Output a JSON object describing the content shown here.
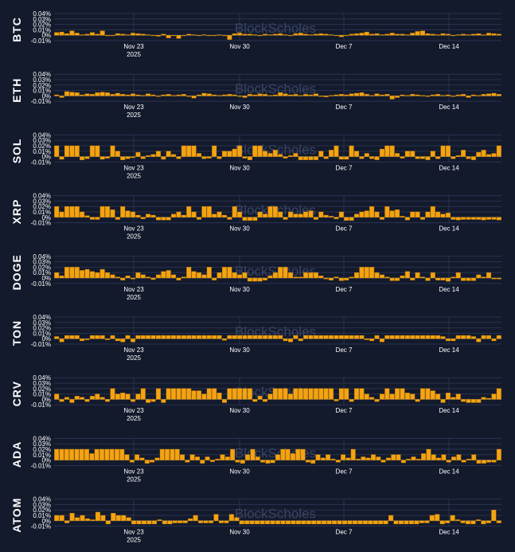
{
  "watermark": "BlockScholes",
  "chart_data": [
    {
      "type": "bar",
      "asset": "BTC",
      "y_ticks": [
        "0.04%",
        "0.03%",
        "0.02%",
        "0.01%",
        "0%",
        "-0.01%"
      ],
      "ylim": [
        -0.01,
        0.04
      ],
      "x_ticks": [
        {
          "label": "Nov 23",
          "sub": "2025"
        },
        {
          "label": "Nov 30"
        },
        {
          "label": "Dec 7"
        },
        {
          "label": "Dec 14"
        }
      ],
      "values": [
        0.005,
        0.006,
        0.003,
        0.008,
        0.004,
        0.001,
        0.002,
        0.005,
        0.002,
        0.008,
        0.0,
        0.0,
        0.003,
        0.002,
        0.001,
        0.004,
        0.003,
        0.002,
        0.001,
        0.0,
        -0.002,
        0.002,
        -0.005,
        -0.001,
        -0.006,
        0.0,
        0.002,
        0.001,
        0.0,
        0.001,
        0.0,
        -0.001,
        0.001,
        0.0,
        -0.008,
        0.003,
        0.004,
        0.002,
        0.002,
        0.001,
        0.0,
        0.002,
        0.001,
        0.002,
        0.003,
        0.001,
        0.0,
        0.003,
        0.004,
        0.002,
        0.001,
        0.002,
        0.003,
        0.002,
        0.001,
        -0.001,
        -0.003,
        0.0,
        0.002,
        0.003,
        0.004,
        0.006,
        0.002,
        0.003,
        0.001,
        0.002,
        0.004,
        0.002,
        0.002,
        0.001,
        0.004,
        0.007,
        0.008,
        0.003,
        0.002,
        0.001,
        0.003,
        0.002,
        0.0,
        0.001,
        0.002,
        0.001,
        0.002,
        0.003,
        0.001,
        0.004,
        0.003,
        0.002
      ]
    },
    {
      "type": "bar",
      "asset": "ETH",
      "y_ticks": [
        "0.04%",
        "0.03%",
        "0.02%",
        "0.01%",
        "0%",
        "-0.01%"
      ],
      "ylim": [
        -0.01,
        0.04
      ],
      "x_ticks": [
        {
          "label": "Nov 23",
          "sub": "2025"
        },
        {
          "label": "Nov 30"
        },
        {
          "label": "Dec 7"
        },
        {
          "label": "Dec 14"
        }
      ],
      "values": [
        0.002,
        -0.003,
        0.008,
        0.007,
        0.006,
        0.002,
        0.004,
        0.003,
        0.006,
        0.007,
        0.006,
        0.003,
        0.005,
        0.003,
        0.002,
        0.004,
        0.002,
        0.001,
        0.004,
        0.002,
        0.0,
        0.002,
        0.003,
        0.001,
        0.002,
        0.003,
        0.0,
        -0.004,
        0.002,
        0.005,
        0.004,
        0.002,
        0.001,
        0.002,
        0.003,
        0.002,
        0.0,
        -0.003,
        0.003,
        0.002,
        0.004,
        0.003,
        0.001,
        0.002,
        0.006,
        0.004,
        0.002,
        0.003,
        0.001,
        0.003,
        0.002,
        0.004,
        0.0,
        -0.002,
        0.001,
        0.002,
        0.003,
        0.002,
        0.004,
        0.005,
        0.006,
        0.003,
        0.001,
        0.004,
        0.002,
        0.003,
        -0.006,
        -0.003,
        0.002,
        0.001,
        0.003,
        0.002,
        0.001,
        0.0,
        0.002,
        0.003,
        0.001,
        0.002,
        0.0,
        0.002,
        0.003,
        -0.003,
        0.002,
        0.001,
        0.003,
        0.004,
        0.005,
        0.003
      ]
    },
    {
      "type": "bar",
      "asset": "SOL",
      "y_ticks": [
        "0.04%",
        "0.03%",
        "0.02%",
        "0.01%",
        "0%",
        "-0.01%"
      ],
      "ylim": [
        -0.01,
        0.04
      ],
      "x_ticks": [
        {
          "label": "Nov 23",
          "sub": "2025"
        },
        {
          "label": "Nov 30"
        },
        {
          "label": "Dec 7"
        },
        {
          "label": "Dec 14"
        }
      ],
      "values": [
        0.02,
        -0.005,
        0.02,
        0.02,
        0.02,
        -0.006,
        -0.004,
        0.02,
        0.02,
        -0.005,
        -0.003,
        0.02,
        0.01,
        -0.006,
        -0.004,
        -0.002,
        0.008,
        -0.004,
        0.002,
        0.004,
        0.01,
        -0.005,
        0.01,
        0.004,
        -0.004,
        0.02,
        0.02,
        0.02,
        0.006,
        -0.004,
        -0.003,
        0.02,
        -0.004,
        0.01,
        0.01,
        0.014,
        0.02,
        -0.003,
        -0.006,
        0.02,
        0.02,
        0.01,
        0.006,
        0.012,
        0.004,
        -0.003,
        0.002,
        0.006,
        -0.006,
        -0.006,
        -0.006,
        -0.006,
        0.01,
        -0.004,
        0.012,
        0.02,
        -0.005,
        -0.005,
        0.02,
        0.01,
        -0.004,
        0.006,
        -0.004,
        -0.006,
        0.014,
        0.02,
        0.02,
        0.006,
        -0.003,
        0.01,
        0.01,
        -0.004,
        -0.004,
        -0.006,
        0.01,
        -0.004,
        0.02,
        0.02,
        -0.004,
        0.002,
        0.012,
        -0.004,
        -0.006,
        0.008,
        0.012,
        0.004,
        0.006,
        0.02
      ]
    },
    {
      "type": "bar",
      "asset": "XRP",
      "y_ticks": [
        "0.04%",
        "0.03%",
        "0.02%",
        "0.01%",
        "0%",
        "-0.01%"
      ],
      "ylim": [
        -0.01,
        0.04
      ],
      "x_ticks": [
        {
          "label": "Nov 23",
          "sub": "2025"
        },
        {
          "label": "Nov 30"
        },
        {
          "label": "Dec 7"
        },
        {
          "label": "Dec 14"
        }
      ],
      "values": [
        0.02,
        0.01,
        0.02,
        0.02,
        0.02,
        0.01,
        0.003,
        -0.004,
        -0.004,
        0.02,
        0.02,
        0.014,
        -0.004,
        0.02,
        0.012,
        0.01,
        0.004,
        -0.003,
        0.006,
        0.004,
        -0.005,
        -0.005,
        -0.005,
        0.006,
        0.01,
        0.004,
        0.02,
        0.01,
        -0.004,
        0.02,
        0.02,
        0.006,
        0.01,
        0.004,
        -0.004,
        0.02,
        0.01,
        -0.006,
        -0.006,
        -0.006,
        0.01,
        0.006,
        0.02,
        0.02,
        0.01,
        -0.004,
        0.01,
        0.006,
        0.006,
        0.01,
        0.012,
        -0.004,
        0.01,
        0.004,
        0.002,
        -0.003,
        0.01,
        -0.006,
        -0.006,
        0.006,
        0.01,
        0.012,
        0.02,
        0.01,
        -0.004,
        0.02,
        0.012,
        0.014,
        0.002,
        -0.005,
        0.01,
        0.01,
        -0.004,
        0.01,
        0.02,
        0.01,
        0.006,
        0.008,
        -0.004,
        -0.005,
        -0.004,
        -0.004,
        -0.004,
        -0.004,
        -0.005,
        -0.004,
        -0.004,
        -0.005
      ]
    },
    {
      "type": "bar",
      "asset": "DOGE",
      "y_ticks": [
        "0.04%",
        "0.03%",
        "0.02%",
        "0.01%",
        "0%",
        "-0.01%"
      ],
      "ylim": [
        -0.01,
        0.04
      ],
      "x_ticks": [
        {
          "label": "Nov 23",
          "sub": "2025"
        },
        {
          "label": "Nov 30"
        },
        {
          "label": "Dec 7"
        },
        {
          "label": "Dec 14"
        }
      ],
      "values": [
        0.01,
        0.004,
        0.02,
        0.02,
        0.02,
        0.014,
        0.016,
        0.012,
        0.01,
        0.016,
        0.01,
        0.006,
        0.002,
        -0.004,
        0.004,
        -0.002,
        0.01,
        0.006,
        0.002,
        -0.003,
        0.006,
        0.012,
        0.014,
        0.006,
        -0.004,
        0.002,
        0.02,
        0.012,
        0.01,
        0.006,
        0.02,
        -0.004,
        0.01,
        0.02,
        0.02,
        0.01,
        0.006,
        0.01,
        -0.006,
        -0.006,
        -0.006,
        -0.004,
        0.004,
        0.01,
        0.02,
        0.02,
        0.01,
        0.002,
        0.002,
        0.01,
        0.01,
        0.01,
        0.004,
        -0.002,
        -0.004,
        0.002,
        -0.005,
        -0.004,
        0.002,
        0.01,
        0.02,
        0.02,
        0.02,
        0.01,
        0.006,
        0.002,
        -0.005,
        -0.005,
        0.004,
        0.012,
        -0.004,
        0.01,
        0.002,
        -0.005,
        0.01,
        -0.004,
        -0.004,
        -0.006,
        0.002,
        0.01,
        -0.005,
        -0.005,
        -0.005,
        0.006,
        0.002,
        0.01,
        -0.002,
        -0.002
      ]
    },
    {
      "type": "bar",
      "asset": "TON",
      "y_ticks": [
        "0.04%",
        "0.03%",
        "0.02%",
        "0.01%",
        "0%",
        "-0.01%"
      ],
      "ylim": [
        -0.01,
        0.04
      ],
      "x_ticks": [
        {
          "label": "Nov 23",
          "sub": "2025"
        },
        {
          "label": "Nov 30"
        },
        {
          "label": "Dec 7"
        },
        {
          "label": "Dec 14"
        }
      ],
      "values": [
        0.004,
        -0.006,
        0.006,
        0.006,
        0.006,
        -0.004,
        -0.002,
        0.006,
        0.006,
        0.006,
        -0.002,
        0.006,
        -0.004,
        -0.006,
        0.006,
        -0.006,
        0.006,
        0.006,
        0.006,
        0.006,
        0.006,
        0.006,
        0.006,
        0.006,
        0.006,
        0.006,
        0.006,
        0.006,
        0.006,
        0.006,
        0.006,
        0.006,
        0.006,
        -0.003,
        0.006,
        0.006,
        0.006,
        0.006,
        0.006,
        0.006,
        0.006,
        0.006,
        0.006,
        0.006,
        0.006,
        -0.004,
        -0.006,
        0.006,
        -0.004,
        0.006,
        0.006,
        0.006,
        0.006,
        0.006,
        0.006,
        0.006,
        0.006,
        0.006,
        0.006,
        0.006,
        0.006,
        -0.002,
        -0.004,
        0.006,
        -0.006,
        0.006,
        0.006,
        0.006,
        0.006,
        0.006,
        0.006,
        0.006,
        0.006,
        0.006,
        0.006,
        0.006,
        0.004,
        -0.004,
        -0.004,
        0.006,
        0.006,
        0.006,
        0.004,
        -0.006,
        0.006,
        0.006,
        -0.004,
        0.006
      ]
    },
    {
      "type": "bar",
      "asset": "CRV",
      "y_ticks": [
        "0.04%",
        "0.03%",
        "0.02%",
        "0.01%",
        "0%",
        "-0.01%"
      ],
      "ylim": [
        -0.01,
        0.04
      ],
      "x_ticks": [
        {
          "label": "Nov 23",
          "sub": "2025"
        },
        {
          "label": "Nov 30"
        },
        {
          "label": "Dec 7"
        },
        {
          "label": "Dec 14"
        }
      ],
      "values": [
        0.01,
        -0.004,
        0.004,
        -0.006,
        0.006,
        0.004,
        -0.004,
        0.006,
        0.01,
        0.004,
        -0.004,
        0.02,
        0.01,
        0.012,
        0.01,
        -0.004,
        0.01,
        0.02,
        -0.006,
        -0.004,
        0.02,
        -0.006,
        0.02,
        0.02,
        0.02,
        0.02,
        0.02,
        0.016,
        0.016,
        0.01,
        0.02,
        0.02,
        0.012,
        -0.006,
        0.02,
        0.02,
        0.02,
        0.02,
        0.02,
        -0.004,
        0.006,
        -0.004,
        0.01,
        0.02,
        0.02,
        0.02,
        0.01,
        0.02,
        0.02,
        0.02,
        0.02,
        0.02,
        0.02,
        0.02,
        0.02,
        -0.003,
        0.02,
        0.02,
        -0.004,
        0.02,
        0.02,
        0.01,
        0.004,
        -0.004,
        0.01,
        0.02,
        0.01,
        0.02,
        0.02,
        0.012,
        0.01,
        -0.004,
        0.02,
        0.02,
        0.016,
        0.01,
        -0.006,
        0.012,
        0.004,
        0.01,
        -0.004,
        -0.006,
        -0.006,
        -0.006,
        0.004,
        0.002,
        0.01,
        0.02
      ]
    },
    {
      "type": "bar",
      "asset": "ADA",
      "y_ticks": [
        "0.04%",
        "0.03%",
        "0.02%",
        "0.01%",
        "0%",
        "-0.01%"
      ],
      "ylim": [
        -0.01,
        0.04
      ],
      "x_ticks": [
        {
          "label": "Nov 23",
          "sub": "2025"
        },
        {
          "label": "Nov 30"
        },
        {
          "label": "Dec 7"
        },
        {
          "label": "Dec 14"
        }
      ],
      "values": [
        0.02,
        0.02,
        0.02,
        0.02,
        0.02,
        0.02,
        0.02,
        0.012,
        0.02,
        0.02,
        0.02,
        0.02,
        0.02,
        0.02,
        0.01,
        -0.004,
        0.01,
        0.004,
        -0.006,
        -0.004,
        0.004,
        0.02,
        0.02,
        0.02,
        0.02,
        0.01,
        -0.004,
        0.01,
        0.006,
        -0.006,
        0.006,
        -0.003,
        0.002,
        0.01,
        0.006,
        0.02,
        -0.004,
        -0.006,
        0.01,
        0.02,
        0.006,
        -0.004,
        -0.006,
        -0.005,
        0.01,
        0.02,
        0.02,
        0.012,
        0.02,
        0.02,
        -0.004,
        -0.006,
        0.01,
        0.004,
        0.01,
        0.002,
        -0.004,
        0.01,
        0.004,
        0.02,
        0.002,
        0.006,
        0.004,
        0.01,
        0.006,
        -0.004,
        0.004,
        0.01,
        0.01,
        -0.005,
        0.002,
        0.006,
        0.002,
        0.012,
        0.02,
        0.01,
        0.004,
        0.01,
        -0.004,
        0.006,
        0.01,
        -0.004,
        0.002,
        0.01,
        -0.006,
        -0.006,
        -0.004,
        -0.004,
        0.02
      ]
    },
    {
      "type": "bar",
      "asset": "ATOM",
      "y_ticks": [
        "0.04%",
        "0.03%",
        "0.02%",
        "0.01%",
        "0%",
        "-0.01%"
      ],
      "ylim": [
        -0.01,
        0.04
      ],
      "x_ticks": [
        {
          "label": "Nov 23",
          "sub": "2025"
        },
        {
          "label": "Nov 30"
        },
        {
          "label": "Dec 7"
        },
        {
          "label": "Dec 14"
        }
      ],
      "values": [
        0.01,
        0.01,
        -0.004,
        0.014,
        0.006,
        0.01,
        0.004,
        0.002,
        0.016,
        0.01,
        -0.006,
        0.014,
        0.01,
        0.01,
        0.006,
        -0.006,
        -0.006,
        -0.006,
        -0.006,
        -0.006,
        0.002,
        -0.006,
        -0.006,
        -0.004,
        -0.004,
        -0.004,
        0.004,
        0.01,
        -0.004,
        -0.004,
        -0.004,
        0.012,
        -0.004,
        -0.004,
        0.012,
        0.006,
        -0.006,
        -0.006,
        -0.006,
        -0.006,
        -0.006,
        -0.006,
        -0.006,
        -0.006,
        -0.006,
        -0.006,
        -0.006,
        -0.006,
        -0.006,
        -0.006,
        -0.006,
        -0.006,
        -0.006,
        -0.006,
        -0.006,
        -0.006,
        -0.006,
        -0.006,
        -0.006,
        -0.006,
        -0.006,
        -0.006,
        -0.006,
        -0.006,
        -0.006,
        0.01,
        -0.006,
        -0.006,
        -0.006,
        -0.006,
        -0.006,
        -0.004,
        -0.004,
        0.01,
        0.012,
        -0.006,
        -0.004,
        0.01,
        0.002,
        -0.004,
        -0.006,
        -0.006,
        0.002,
        -0.006,
        -0.004,
        0.02,
        -0.004
      ]
    }
  ],
  "colors": {
    "background": "#131a2c",
    "bar": "#f4a312",
    "bar_stroke": "#c47f00",
    "grid": "#2a3350",
    "text": "#ffffff",
    "watermark": "#3a4563"
  }
}
